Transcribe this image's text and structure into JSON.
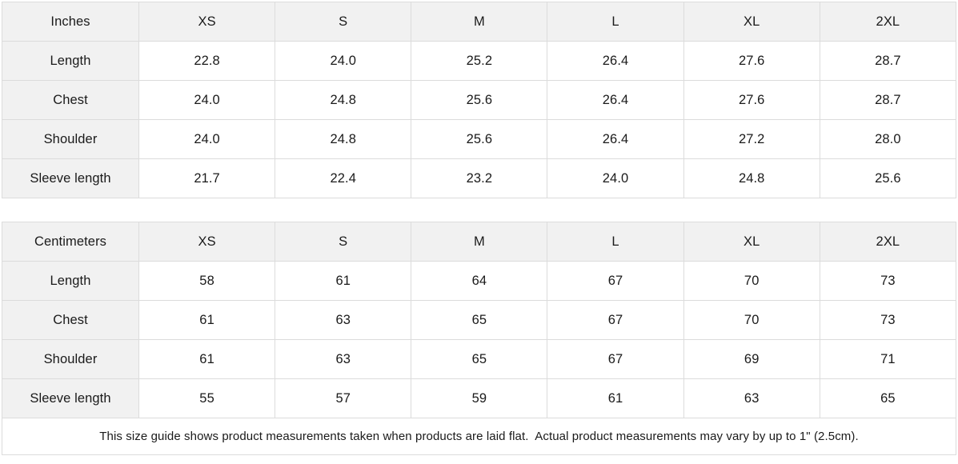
{
  "size_guide": {
    "tables": [
      {
        "unit_label": "Inches",
        "columns": [
          "XS",
          "S",
          "M",
          "L",
          "XL",
          "2XL"
        ],
        "rows": [
          {
            "label": "Length",
            "values": [
              "22.8",
              "24.0",
              "25.2",
              "26.4",
              "27.6",
              "28.7"
            ]
          },
          {
            "label": "Chest",
            "values": [
              "24.0",
              "24.8",
              "25.6",
              "26.4",
              "27.6",
              "28.7"
            ]
          },
          {
            "label": "Shoulder",
            "values": [
              "24.0",
              "24.8",
              "25.6",
              "26.4",
              "27.2",
              "28.0"
            ]
          },
          {
            "label": "Sleeve length",
            "values": [
              "21.7",
              "22.4",
              "23.2",
              "24.0",
              "24.8",
              "25.6"
            ]
          }
        ]
      },
      {
        "unit_label": "Centimeters",
        "columns": [
          "XS",
          "S",
          "M",
          "L",
          "XL",
          "2XL"
        ],
        "rows": [
          {
            "label": "Length",
            "values": [
              "58",
              "61",
              "64",
              "67",
              "70",
              "73"
            ]
          },
          {
            "label": "Chest",
            "values": [
              "61",
              "63",
              "65",
              "67",
              "70",
              "73"
            ]
          },
          {
            "label": "Shoulder",
            "values": [
              "61",
              "63",
              "65",
              "67",
              "69",
              "71"
            ]
          },
          {
            "label": "Sleeve length",
            "values": [
              "55",
              "57",
              "59",
              "61",
              "63",
              "65"
            ]
          }
        ]
      }
    ],
    "footnote": "This size guide shows product measurements taken when products are laid flat.  Actual product measurements may vary by up to 1\" (2.5cm).",
    "colors": {
      "header_bg": "#f1f1f1",
      "border": "#dcdcdc",
      "text": "#1a1a1a",
      "cell_bg": "#ffffff"
    }
  }
}
